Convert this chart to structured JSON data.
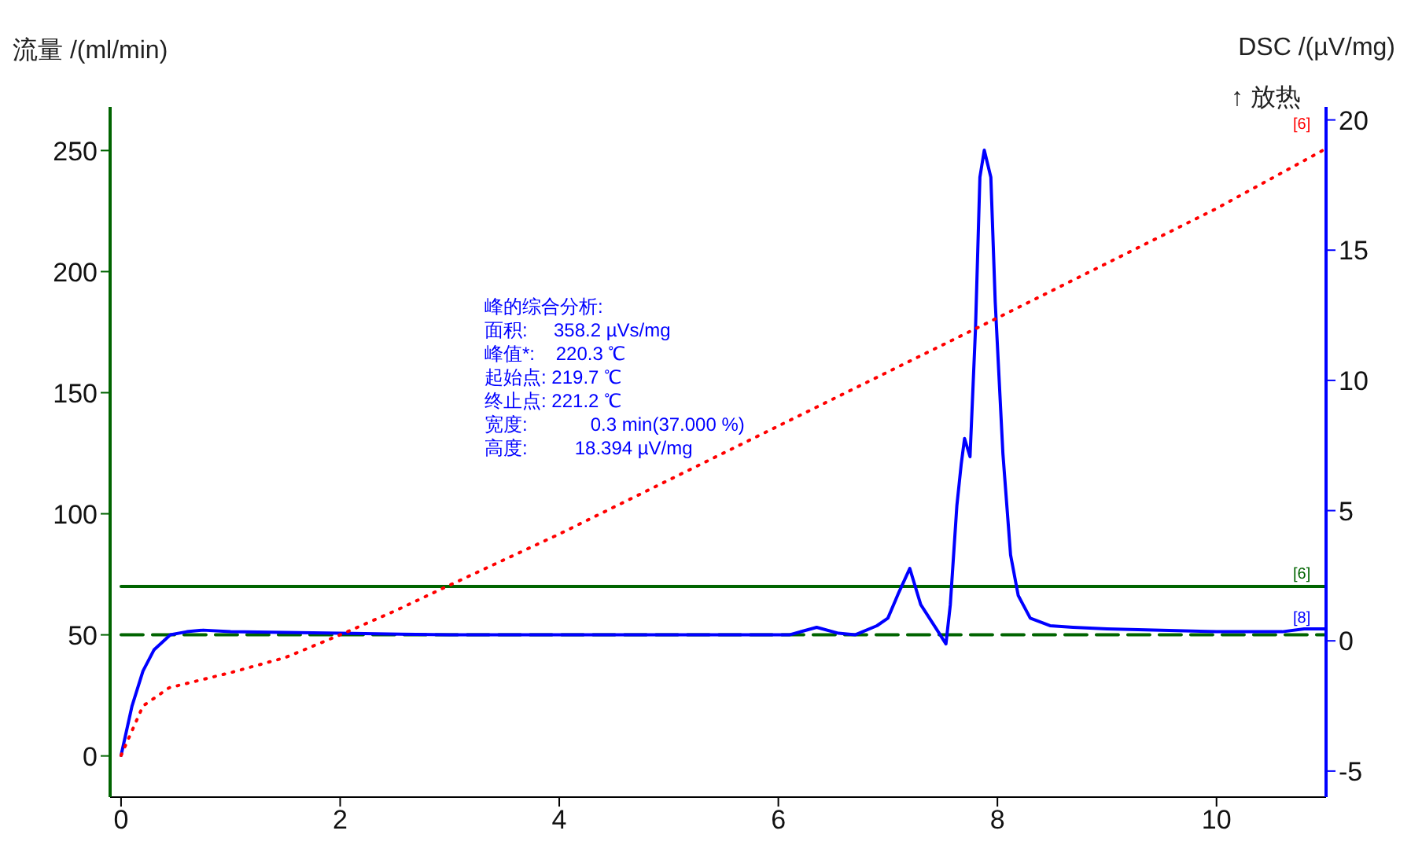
{
  "chart_data": {
    "type": "line",
    "ylabel": "流量 /(ml/min)",
    "y2label": "DSC /(µV/mg)",
    "xlim": [
      -0.1,
      11
    ],
    "xticks": [
      0,
      2,
      4,
      6,
      8,
      10
    ],
    "ylim": [
      -17,
      268
    ],
    "yticks": [
      0,
      50,
      100,
      150,
      200,
      250
    ],
    "y2lim": [
      -6,
      20.5
    ],
    "y2ticks": [
      -5,
      0,
      5,
      10,
      15,
      20
    ],
    "legend": false,
    "grid": false,
    "marker": "none",
    "series": [
      {
        "axis": "y2",
        "color": "#0000ff",
        "line_style": "solid",
        "x": [
          0,
          0.1,
          0.2,
          0.3,
          0.45,
          0.6,
          0.75,
          1,
          1.5,
          2,
          3,
          4,
          5,
          6,
          6.1,
          6.35,
          6.55,
          6.7,
          6.9,
          7.0,
          7.1,
          7.2,
          7.3,
          7.45,
          7.53,
          7.57,
          7.63,
          7.67,
          7.7,
          7.75,
          7.8,
          7.84,
          7.88,
          7.94,
          7.98,
          8.05,
          8.12,
          8.19,
          8.3,
          8.48,
          8.69,
          9,
          10,
          10.6,
          10.8,
          11
        ],
        "values": [
          -4.4,
          -2.5,
          -1.16,
          -0.35,
          0.23,
          0.35,
          0.41,
          0.35,
          0.32,
          0.29,
          0.23,
          0.23,
          0.23,
          0.23,
          0.23,
          0.52,
          0.29,
          0.23,
          0.58,
          0.87,
          1.86,
          2.78,
          1.39,
          0.41,
          -0.12,
          1.39,
          5.2,
          6.8,
          7.77,
          7.07,
          12.0,
          17.8,
          18.84,
          17.8,
          13.0,
          7.19,
          3.3,
          1.74,
          0.87,
          0.58,
          0.52,
          0.46,
          0.35,
          0.35,
          0.46,
          0.46
        ]
      },
      {
        "axis": "y2",
        "color": "#ff0000",
        "line_style": "dotted",
        "x": [
          0,
          0.2,
          0.44,
          1,
          1.5,
          2,
          2.5,
          3,
          4,
          6,
          8,
          10,
          11
        ],
        "values": [
          -4.4,
          -2.5,
          -1.8,
          -1.22,
          -0.64,
          0.23,
          1.15,
          2.14,
          4.1,
          8.25,
          12.4,
          16.6,
          18.9
        ]
      },
      {
        "axis": "y",
        "color": "#006400",
        "line_style": "solid",
        "x": [
          0,
          11
        ],
        "values": [
          70,
          70
        ]
      },
      {
        "axis": "y",
        "color": "#006400",
        "line_style": "dashed",
        "x": [
          0,
          11
        ],
        "values": [
          50,
          50
        ]
      }
    ],
    "annotations": [
      "[6]",
      "[6]",
      "[8]",
      "↑ 放热",
      "峰的综合分析:",
      "面积:     358.2 µVs/mg",
      "峰值*:    220.3 ℃",
      "起始点: 219.7 ℃",
      "终止点: 221.2 ℃",
      "宽度:            0.3 min(37.000 %)",
      "高度:         18.394 µV/mg"
    ]
  }
}
